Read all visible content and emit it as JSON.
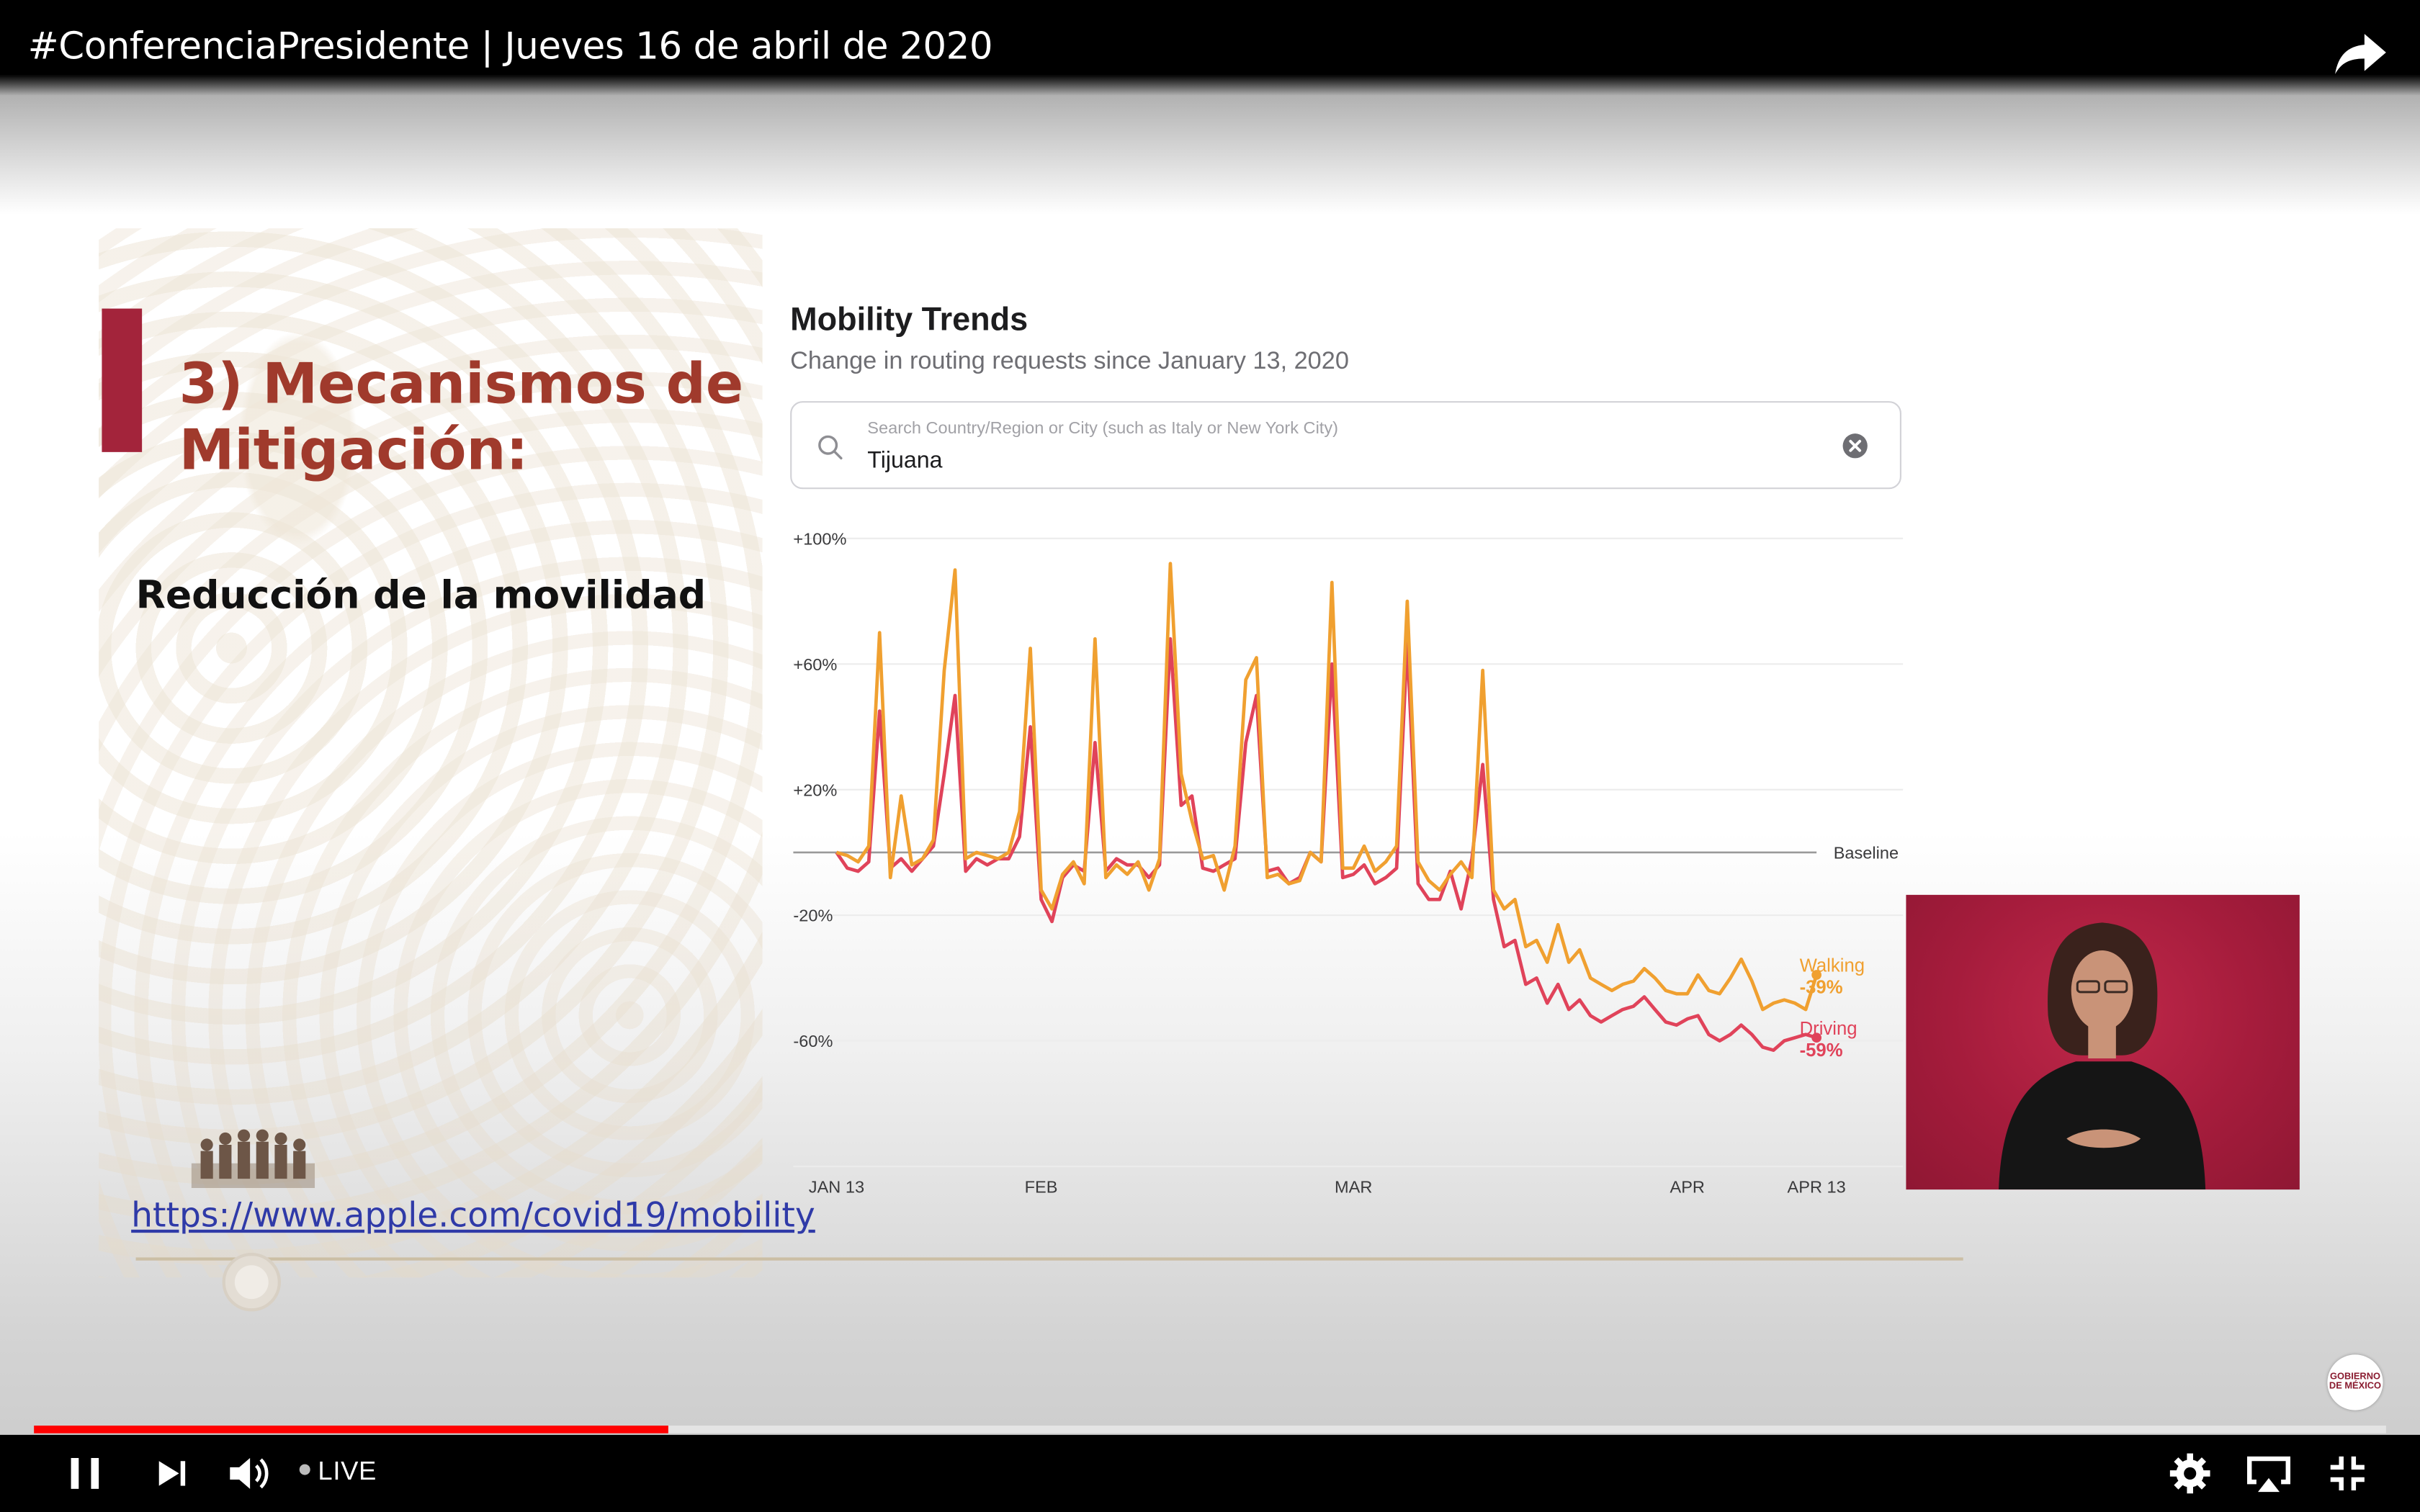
{
  "video": {
    "title": "#ConferenciaPresidente | Jueves 16 de abril de 2020",
    "live_label": "LIVE",
    "progress_fraction": 0.27
  },
  "slide": {
    "title": "3) Mecanismos de Mitigación:",
    "subtitle": "Reducción de la movilidad",
    "source_url": "https://www.apple.com/covid19/mobility"
  },
  "panel": {
    "title": "Mobility Trends",
    "subtitle": "Change in routing requests since January 13, 2020",
    "search_placeholder": "Search Country/Region or City (such as Italy or New York City)",
    "search_value": "Tijuana"
  },
  "logo": {
    "text": "GOBIERNO DE MÉXICO"
  },
  "colors": {
    "walking": "#f0a030",
    "driving": "#e0435a",
    "accent_red": "#a3243b",
    "title_brown": "#a03a2c",
    "progress": "#ff0000"
  },
  "icons": [
    "share-icon",
    "search-icon",
    "clear-icon",
    "pause-icon",
    "next-icon",
    "volume-icon",
    "settings-icon",
    "airplay-icon",
    "exit-fullscreen-icon"
  ],
  "chart_data": {
    "type": "line",
    "ylim": [
      -100,
      100
    ],
    "y_ticks": [
      "+100%",
      "+60%",
      "+20%",
      "-20%",
      "-60%"
    ],
    "y_tick_values": [
      100,
      60,
      20,
      -20,
      -60
    ],
    "x_ticks": [
      {
        "label": "JAN 13",
        "day": 0
      },
      {
        "label": "FEB",
        "day": 19
      },
      {
        "label": "MAR",
        "day": 48
      },
      {
        "label": "APR",
        "day": 79
      },
      {
        "label": "APR 13",
        "day": 91
      }
    ],
    "baseline_label": "Baseline",
    "series": [
      {
        "name": "Walking",
        "end_label": "-39%",
        "values": [
          0,
          -1,
          -3,
          2,
          70,
          -8,
          18,
          -4,
          -2,
          4,
          58,
          90,
          -2,
          0,
          -1,
          -2,
          0,
          13,
          65,
          -12,
          -18,
          -7,
          -3,
          -10,
          68,
          -8,
          -4,
          -7,
          -3,
          -12,
          -2,
          92,
          25,
          10,
          -2,
          -1,
          -12,
          2,
          55,
          62,
          -8,
          -7,
          -10,
          -9,
          0,
          -3,
          86,
          -5,
          -5,
          2,
          -6,
          -3,
          2,
          80,
          -3,
          -9,
          -12,
          -7,
          -3,
          -8,
          58,
          -12,
          -18,
          -15,
          -30,
          -28,
          -35,
          -23,
          -35,
          -31,
          -40,
          -42,
          -44,
          -42,
          -41,
          -37,
          -40,
          -44,
          -45,
          -45,
          -39,
          -44,
          -45,
          -40,
          -34,
          -41,
          -50,
          -48,
          -47,
          -48,
          -50,
          -39
        ],
        "x_start": 0
      },
      {
        "name": "Driving",
        "end_label": "-59%",
        "values": [
          0,
          -5,
          -6,
          -3,
          45,
          -5,
          -2,
          -6,
          -2,
          2,
          25,
          50,
          -6,
          -2,
          -4,
          -2,
          -2,
          5,
          40,
          -15,
          -22,
          -8,
          -4,
          -6,
          35,
          -6,
          -2,
          -4,
          -4,
          -8,
          -4,
          68,
          15,
          18,
          -5,
          -6,
          -4,
          -2,
          35,
          50,
          -6,
          -5,
          -10,
          -8,
          0,
          -3,
          60,
          -8,
          -7,
          -4,
          -10,
          -8,
          -5,
          67,
          -10,
          -15,
          -15,
          -6,
          -18,
          -2,
          28,
          -15,
          -30,
          -28,
          -42,
          -40,
          -48,
          -42,
          -50,
          -47,
          -52,
          -54,
          -52,
          -50,
          -49,
          -46,
          -50,
          -54,
          -55,
          -53,
          -52,
          -58,
          -60,
          -58,
          -55,
          -58,
          -62,
          -63,
          -60,
          -59,
          -58,
          -59
        ],
        "x_start": 0
      }
    ]
  }
}
